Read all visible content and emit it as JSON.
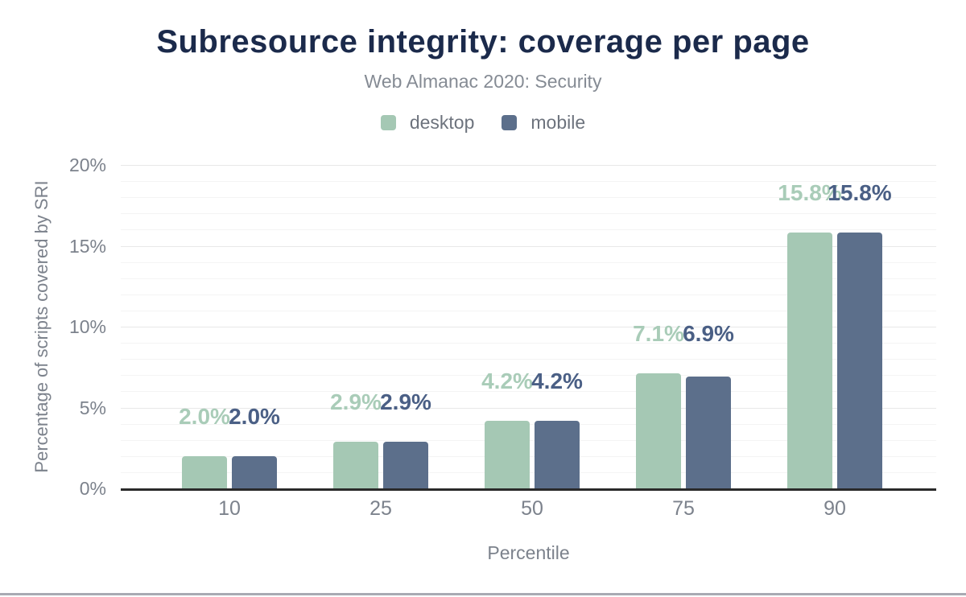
{
  "chart_data": {
    "type": "bar",
    "title": "Subresource integrity: coverage per page",
    "subtitle": "Web Almanac 2020: Security",
    "xlabel": "Percentile",
    "ylabel": "Percentage of scripts covered by SRI",
    "categories": [
      "10",
      "25",
      "50",
      "75",
      "90"
    ],
    "series": [
      {
        "name": "desktop",
        "color": "#a5c8b4",
        "label_color": "#a9ccb8",
        "values": [
          2.0,
          2.9,
          4.2,
          7.1,
          15.8
        ]
      },
      {
        "name": "mobile",
        "color": "#5c6f8b",
        "label_color": "#4a5f85",
        "values": [
          2.0,
          2.9,
          4.2,
          6.9,
          15.8
        ]
      }
    ],
    "value_label_format": "{value}%",
    "y_ticks": [
      "0%",
      "5%",
      "10%",
      "15%",
      "20%"
    ],
    "ylim": [
      0,
      20
    ],
    "y_major_step": 5,
    "y_minor_step": 1,
    "grid": true,
    "legend_position": "top",
    "colors": {
      "title": "#1b2a4b",
      "subtitle": "#858b94",
      "legend_text": "#6d737d",
      "tick": "#7c828c",
      "axis_title": "#7c828c",
      "grid_major": "#e8e8e8",
      "grid_minor": "#f4f4f4",
      "axis_line": "#2a2a2a",
      "frame_bar": "#a8aab3"
    }
  }
}
